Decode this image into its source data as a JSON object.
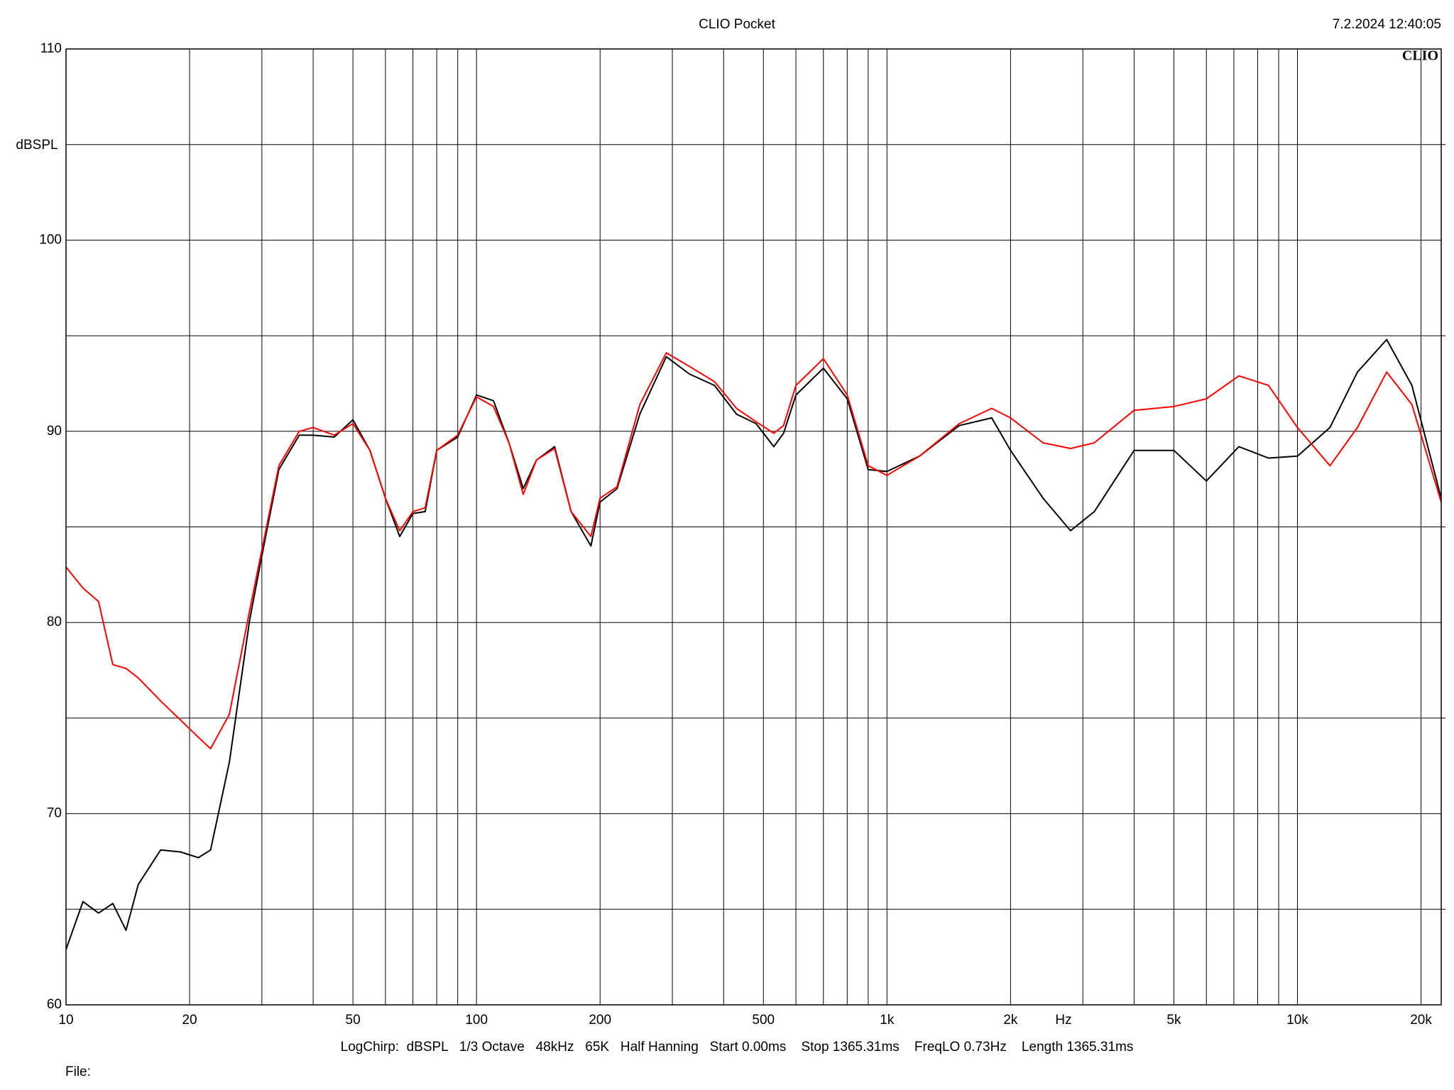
{
  "chart_data": {
    "type": "line",
    "title": "CLIO Pocket",
    "timestamp": "7.2.2024 12:40:05",
    "logo": "CLIO",
    "y_label": "dBSPL",
    "x_label": "Hz",
    "footer": "LogChirp:  dBSPL   1/3 Octave   48kHz   65K   Half Hanning   Start 0.00ms    Stop 1365.31ms    FreqLO 0.73Hz    Length 1365.31ms",
    "file_label": "File:",
    "x_scale": "log",
    "grid": true,
    "xlim": [
      10,
      22400
    ],
    "ylim": [
      60,
      110
    ],
    "xticks": [
      10,
      20,
      50,
      100,
      200,
      500,
      {
        "value": 1000,
        "label": "1k"
      },
      {
        "value": 2000,
        "label": "2k"
      },
      {
        "value": 5000,
        "label": "5k"
      },
      {
        "value": 10000,
        "label": "10k"
      },
      {
        "value": 20000,
        "label": "20k"
      }
    ],
    "xminor": [
      30,
      40,
      60,
      70,
      80,
      90,
      300,
      400,
      600,
      700,
      800,
      900,
      3000,
      4000,
      6000,
      7000,
      8000,
      9000
    ],
    "yticks": [
      60,
      70,
      80,
      90,
      100,
      110
    ],
    "yminor": [
      65,
      75,
      85,
      95,
      105
    ],
    "x": [
      10,
      11,
      12,
      13,
      14,
      15,
      17,
      19,
      21,
      22.5,
      25,
      28,
      30,
      33,
      37,
      40,
      45,
      50,
      55,
      60,
      65,
      70,
      75,
      80,
      90,
      100,
      110,
      120,
      130,
      140,
      155,
      170,
      190,
      200,
      220,
      250,
      290,
      330,
      380,
      430,
      480,
      530,
      560,
      600,
      700,
      800,
      900,
      1000,
      1200,
      1500,
      1800,
      2000,
      2400,
      2800,
      3200,
      4000,
      5000,
      6000,
      7200,
      8500,
      10000,
      12000,
      14000,
      16500,
      19000,
      22400
    ],
    "series": [
      {
        "color": "#000000",
        "values": [
          62.9,
          65.4,
          64.8,
          65.3,
          63.9,
          66.3,
          68.1,
          68.0,
          67.7,
          68.1,
          72.7,
          80.1,
          83.5,
          88.0,
          89.8,
          89.8,
          89.7,
          90.6,
          89.0,
          86.5,
          84.5,
          85.7,
          85.8,
          89.0,
          89.7,
          91.9,
          91.6,
          89.4,
          87.0,
          88.5,
          89.2,
          85.8,
          84.0,
          86.3,
          87.0,
          90.9,
          93.9,
          93.0,
          92.4,
          90.9,
          90.4,
          89.2,
          89.9,
          91.9,
          93.3,
          91.7,
          88.0,
          87.9,
          88.7,
          90.3,
          90.7,
          89.0,
          86.5,
          84.8,
          85.8,
          89.0,
          89.0,
          87.4,
          89.2,
          88.6,
          88.7,
          90.2,
          93.1,
          94.8,
          92.4,
          86.5
        ]
      },
      {
        "color": "#ff0000",
        "values": [
          82.9,
          81.8,
          81.1,
          77.8,
          77.6,
          77.1,
          75.9,
          74.9,
          74.0,
          73.4,
          75.2,
          80.6,
          83.8,
          88.2,
          90.0,
          90.2,
          89.8,
          90.4,
          89.0,
          86.5,
          84.8,
          85.8,
          86.0,
          89.0,
          89.8,
          91.8,
          91.3,
          89.4,
          86.7,
          88.5,
          89.1,
          85.8,
          84.5,
          86.5,
          87.1,
          91.4,
          94.1,
          93.4,
          92.6,
          91.2,
          90.5,
          89.9,
          90.3,
          92.4,
          93.8,
          91.9,
          88.2,
          87.7,
          88.7,
          90.4,
          91.2,
          90.7,
          89.4,
          89.1,
          89.4,
          91.1,
          91.3,
          91.7,
          92.9,
          92.4,
          90.2,
          88.2,
          90.2,
          93.1,
          91.4,
          86.3
        ]
      }
    ]
  }
}
